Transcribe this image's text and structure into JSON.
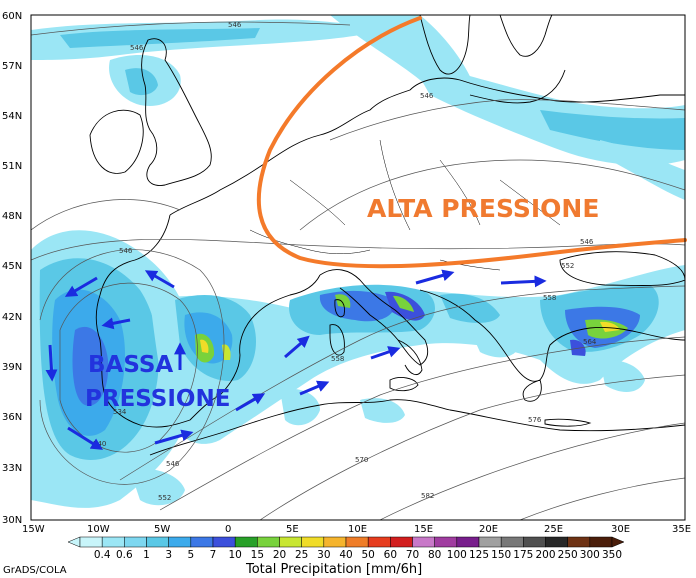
{
  "map": {
    "y_axis_labels": [
      "60N",
      "57N",
      "54N",
      "51N",
      "48N",
      "45N",
      "42N",
      "39N",
      "36N",
      "33N",
      "30N"
    ],
    "x_axis_labels": [
      "15W",
      "10W",
      "5W",
      "0",
      "5E",
      "10E",
      "15E",
      "20E",
      "25E",
      "30E",
      "35E"
    ],
    "annotations": {
      "high_pressure": "ALTA PRESSIONE",
      "low_pressure_line1": "BASSA",
      "low_pressure_line2": "PRESSIONE"
    },
    "isobar_labels": [
      "546",
      "546",
      "546",
      "546",
      "552",
      "558",
      "540",
      "534",
      "546",
      "552",
      "558",
      "564",
      "570",
      "576",
      "582",
      "546"
    ],
    "colors": {
      "high_pressure_line": "#f47a2a",
      "arrows": "#1a2be0",
      "land": "#ffffff",
      "coast": "#000000"
    }
  },
  "colorbar": {
    "labels": [
      "0.4",
      "0.6",
      "1",
      "3",
      "5",
      "7",
      "10",
      "15",
      "20",
      "25",
      "30",
      "40",
      "50",
      "60",
      "70",
      "80",
      "100",
      "125",
      "150",
      "175",
      "200",
      "250",
      "300",
      "350"
    ],
    "colors": [
      "#c8f5fa",
      "#9be6f5",
      "#7dd7f0",
      "#5ac8e6",
      "#3caaeb",
      "#3c78e6",
      "#3c50dc",
      "#28a028",
      "#78d23c",
      "#c8e632",
      "#f0dc28",
      "#f5b42d",
      "#ef7d28",
      "#e63c1e",
      "#d21e1e",
      "#c878c8",
      "#a03ca0",
      "#781e8c",
      "#a0a0a0",
      "#787878",
      "#505050",
      "#282828",
      "#6e3214",
      "#4b1e0a"
    ],
    "title": "Total Precipitation [mm/6h]"
  },
  "credit": "GrADS/COLA"
}
